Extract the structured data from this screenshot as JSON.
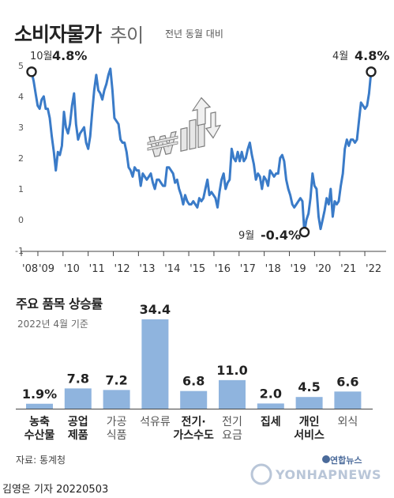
{
  "header": {
    "title": "소비자물가",
    "subtitle": "추이",
    "note": "전년 동월 대비"
  },
  "line_chart": {
    "callouts": {
      "start_label": "10월",
      "start_value": "4.8%",
      "low_label": "9월",
      "low_value": "-0.4%",
      "end_label": "4월",
      "end_value": "4.8%"
    }
  },
  "bar_section": {
    "title": "주요 품목 상승률",
    "note": "2022년 4월 기준"
  },
  "footer": {
    "source": "자료: 통계청",
    "byline": "김영은 기자  20220503",
    "logo_small": "연합뉴스",
    "logo_word": "YONHAPNEWS"
  },
  "colors": {
    "line": "#3a7bc8",
    "bar": "#8fb4de",
    "axis": "#444444",
    "gridline": "#cccccc"
  },
  "chart_data": [
    {
      "type": "line",
      "ylim": [
        -1,
        5
      ],
      "yticks": [
        "-1",
        "0",
        "1",
        "2",
        "3",
        "4",
        "5"
      ],
      "xticks": [
        "'08",
        "'09",
        "'10",
        "'11",
        "'12",
        "'13",
        "'14",
        "'15",
        "'16",
        "'17",
        "'18",
        "'19",
        "'20",
        "'21",
        "'22"
      ],
      "x_start": "2008-10",
      "x_end": "2022-04",
      "values": [
        4.8,
        4.5,
        4.1,
        3.7,
        3.6,
        3.9,
        4.0,
        3.6,
        3.6,
        3.3,
        2.7,
        2.2,
        1.6,
        2.2,
        2.1,
        2.4,
        3.5,
        3.0,
        2.8,
        3.1,
        3.7,
        4.1,
        3.1,
        2.6,
        2.8,
        2.9,
        3.0,
        2.5,
        2.3,
        2.7,
        3.5,
        4.2,
        4.7,
        4.2,
        4.1,
        3.9,
        4.2,
        4.4,
        4.7,
        4.9,
        4.2,
        3.3,
        3.2,
        3.1,
        2.6,
        2.5,
        2.5,
        2.2,
        1.7,
        1.6,
        1.4,
        1.7,
        1.6,
        1.6,
        1.1,
        1.5,
        1.4,
        1.3,
        1.4,
        1.5,
        1.2,
        1.0,
        1.3,
        1.3,
        1.2,
        1.1,
        1.1,
        1.7,
        1.7,
        1.6,
        1.5,
        1.2,
        1.3,
        1.0,
        0.8,
        0.5,
        0.8,
        0.6,
        0.5,
        0.5,
        0.6,
        0.5,
        0.4,
        0.7,
        0.6,
        0.7,
        1.0,
        1.3,
        0.8,
        0.9,
        0.8,
        0.7,
        0.4,
        0.9,
        1.3,
        1.5,
        1.0,
        1.2,
        1.3,
        2.3,
        2.0,
        1.9,
        2.2,
        1.9,
        2.2,
        1.9,
        2.0,
        2.3,
        2.5,
        2.1,
        1.8,
        1.3,
        1.5,
        1.4,
        1.0,
        1.4,
        1.3,
        1.1,
        1.6,
        1.5,
        1.4,
        1.5,
        1.5,
        2.0,
        2.1,
        1.9,
        1.3,
        1.0,
        0.8,
        0.5,
        0.4,
        0.5,
        0.6,
        0.7,
        0.6,
        -0.4,
        0.0,
        0.2,
        0.7,
        1.5,
        1.1,
        1.0,
        0.1,
        -0.3,
        0.0,
        0.3,
        0.7,
        0.5,
        1.0,
        0.1,
        0.6,
        0.5,
        0.6,
        1.1,
        1.5,
        2.3,
        2.6,
        2.4,
        2.6,
        2.6,
        2.5,
        2.6,
        3.2,
        3.8,
        3.7,
        3.6,
        3.7,
        4.1,
        4.8
      ]
    },
    {
      "type": "bar",
      "categories": [
        "농축\n수산물",
        "공업\n제품",
        "가공\n식품",
        "석유류",
        "전기·\n가스수도",
        "전기\n요금",
        "집세",
        "개인\n서비스",
        "외식"
      ],
      "values": [
        1.9,
        7.8,
        7.2,
        34.4,
        6.8,
        11.0,
        2.0,
        4.5,
        6.6
      ],
      "value_labels": [
        "1.9%",
        "7.8",
        "7.2",
        "34.4",
        "6.8",
        "11.0",
        "2.0",
        "4.5",
        "6.6"
      ],
      "bold_categories": [
        true,
        true,
        false,
        false,
        true,
        false,
        true,
        true,
        false
      ]
    }
  ]
}
